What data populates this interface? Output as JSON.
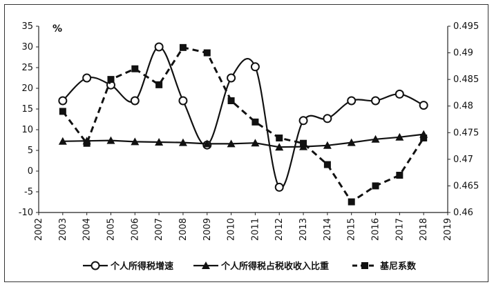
{
  "chart_data": {
    "type": "line",
    "unit_label": "%",
    "x": [
      2003,
      2004,
      2005,
      2006,
      2007,
      2008,
      2009,
      2010,
      2011,
      2012,
      2013,
      2014,
      2015,
      2016,
      2017,
      2018
    ],
    "x_ticks": [
      2002,
      2003,
      2004,
      2005,
      2006,
      2007,
      2008,
      2009,
      2010,
      2011,
      2012,
      2013,
      2014,
      2015,
      2016,
      2017,
      2018,
      2019
    ],
    "xlim": [
      2002,
      2019
    ],
    "y_left": {
      "lim": [
        -10,
        35
      ],
      "ticks": [
        -10,
        -5,
        0,
        5,
        10,
        15,
        20,
        25,
        30,
        35
      ]
    },
    "y_right": {
      "lim": [
        0.46,
        0.495
      ],
      "ticks": [
        "0.46",
        "0.465",
        "0.47",
        "0.475",
        "0.48",
        "0.485",
        "0.49",
        "0.495"
      ]
    },
    "series": [
      {
        "name": "个人所得税增速",
        "axis": "left",
        "style": "solid",
        "marker": "circle-open",
        "values": [
          17,
          22.5,
          20.8,
          17,
          30,
          17,
          6.3,
          22.5,
          25.2,
          -3.9,
          12.2,
          12.7,
          17,
          17,
          18.6,
          15.9
        ]
      },
      {
        "name": "个人所得税占税收收入比重",
        "axis": "left",
        "style": "solid",
        "marker": "triangle",
        "values": [
          7.2,
          7.3,
          7.4,
          7.1,
          7.0,
          6.9,
          6.6,
          6.6,
          6.8,
          5.8,
          5.9,
          6.2,
          6.9,
          7.7,
          8.2,
          8.9
        ]
      },
      {
        "name": "基尼系数",
        "axis": "right",
        "style": "dashed",
        "marker": "square",
        "values": [
          0.479,
          0.473,
          0.485,
          0.487,
          0.484,
          0.491,
          0.49,
          0.481,
          0.477,
          0.474,
          0.473,
          0.469,
          0.462,
          0.465,
          0.467,
          0.474
        ]
      }
    ],
    "legend_position": "bottom",
    "grid": false
  }
}
